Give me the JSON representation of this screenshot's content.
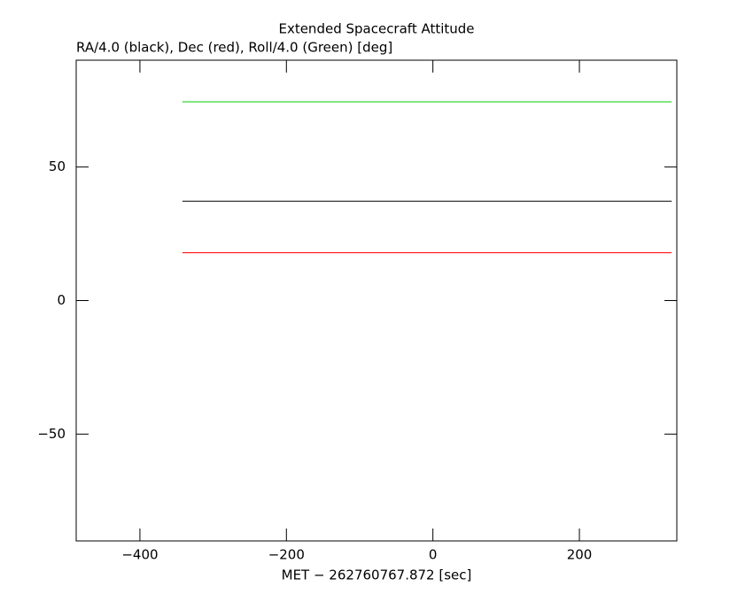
{
  "chart_data": {
    "type": "line",
    "title": "Extended Spacecraft Attitude",
    "subtitle": "RA/4.0 (black), Dec (red), Roll/4.0 (Green) [deg]",
    "x_label": "MET − 262760767.872 [sec]",
    "x": [
      -342,
      326
    ],
    "series": [
      {
        "name": "RA/4.0",
        "color": "#000000",
        "values": [
          37.2,
          37.2
        ]
      },
      {
        "name": "Dec",
        "color": "#ff0000",
        "values": [
          17.9,
          17.9
        ]
      },
      {
        "name": "Roll/4.0",
        "color": "#00cc00",
        "values": [
          74.4,
          74.4
        ]
      }
    ],
    "xlim": [
      -487,
      333
    ],
    "ylim": [
      -90,
      90
    ],
    "xticks": [
      {
        "value": -400,
        "label": "−400"
      },
      {
        "value": -200,
        "label": "−200"
      },
      0,
      200
    ],
    "yticks": [
      {
        "value": -50,
        "label": "−50"
      },
      0,
      50
    ],
    "grid": false
  }
}
